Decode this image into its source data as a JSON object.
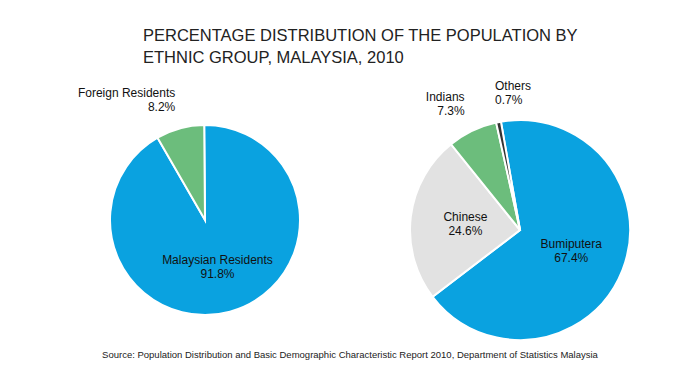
{
  "title": "PERCENTAGE DISTRIBUTION OF THE POPULATION BY ETHNIC GROUP, MALAYSIA, 2010",
  "source": "Source: Population Distribution and Basic Demographic Characteristic Report 2010, Department of Statistics Malaysia",
  "chart_data": [
    {
      "type": "pie",
      "categories": [
        "Malaysian Residents",
        "Foreign Residents"
      ],
      "values": [
        91.8,
        8.2
      ],
      "value_labels": [
        "91.8%",
        "8.2%"
      ],
      "colors": [
        "#0aa2e0",
        "#6cbd7c"
      ],
      "data_labels": true
    },
    {
      "type": "pie",
      "categories": [
        "Bumiputera",
        "Chinese",
        "Indians",
        "Others"
      ],
      "values": [
        67.4,
        24.6,
        7.3,
        0.7
      ],
      "value_labels": [
        "67.4%",
        "24.6%",
        "7.3%",
        "0.7%"
      ],
      "colors": [
        "#0aa2e0",
        "#e2e2e2",
        "#6cbd7c",
        "#333333"
      ],
      "data_labels": true
    }
  ]
}
